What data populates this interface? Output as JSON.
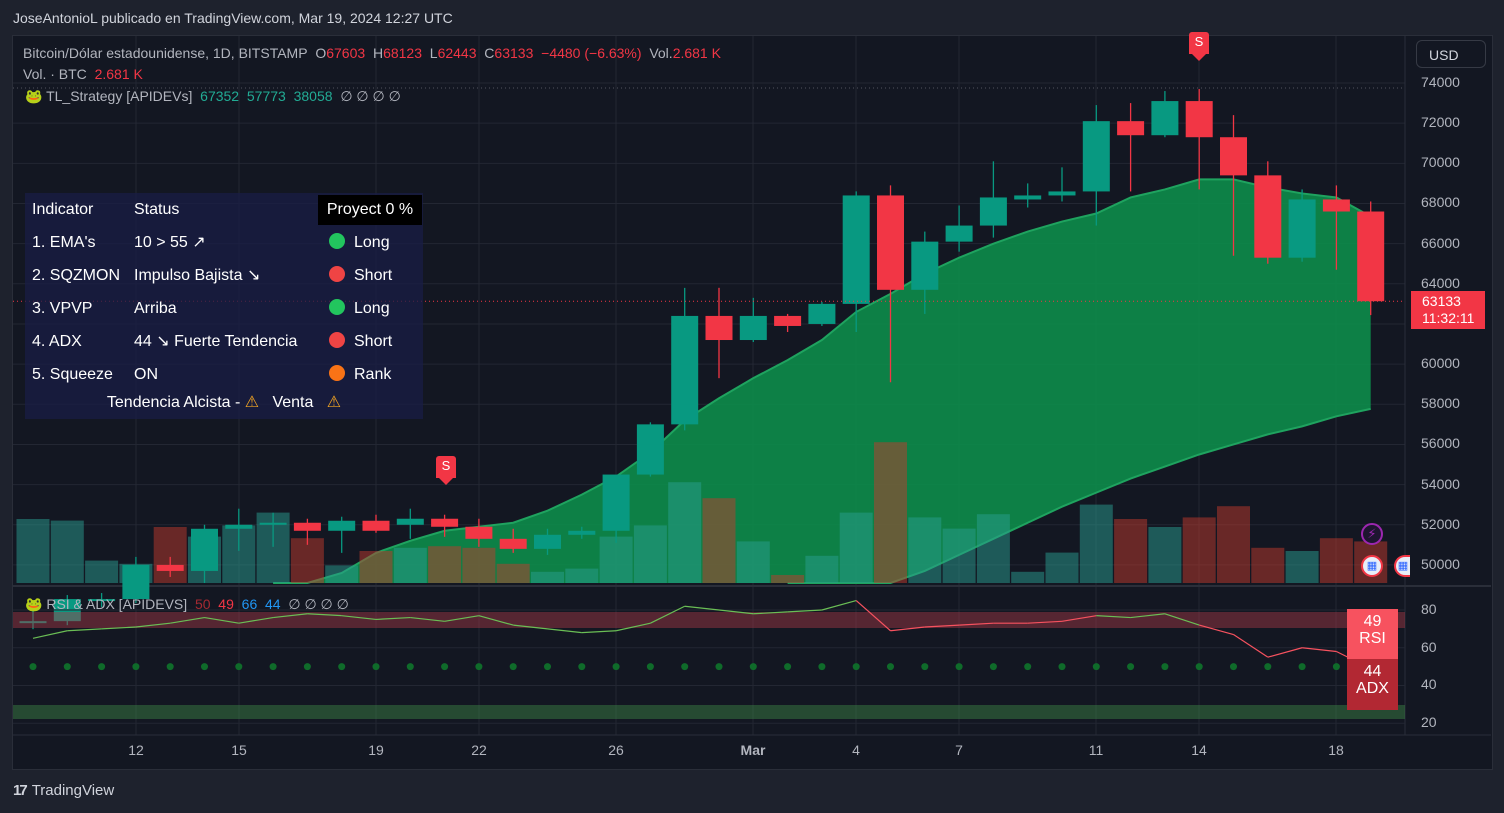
{
  "header": {
    "attribution": "JoseAntonioL publicado en TradingView.com, Mar 19, 2024 12:27 UTC"
  },
  "symbol": {
    "title": "Bitcoin/Dólar estadounidense, 1D, BITSTAMP",
    "o_label": "O",
    "o": "67603",
    "h_label": "H",
    "h": "68123",
    "l_label": "L",
    "l": "62443",
    "c_label": "C",
    "c": "63133",
    "change": "−4480 (−6.63%)",
    "vol_label": "Vol.",
    "vol": "2.681 K"
  },
  "volume_legend": {
    "label": "Vol. · BTC",
    "value": "2.681 K"
  },
  "strategy_legend": {
    "name": "TL_Strategy [APIDEVs]",
    "v1": "67352",
    "v2": "57773",
    "v3": "38058",
    "nulls": "∅ ∅ ∅ ∅"
  },
  "indicator_table": {
    "header": {
      "indicator": "Indicator",
      "status": "Status",
      "projection": "Proyect 0 %"
    },
    "rows": [
      {
        "indicator": "1. EMA's",
        "status": "10 > 55 ↗",
        "signal": "Long",
        "color": "#22c55e"
      },
      {
        "indicator": "2. SQZMON",
        "status": "Impulso Bajista ↘",
        "signal": "Short",
        "color": "#ef4444"
      },
      {
        "indicator": "3. VPVP",
        "status": "Arriba",
        "signal": "Long",
        "color": "#22c55e"
      },
      {
        "indicator": "4. ADX",
        "status": "44 ↘ Fuerte Tendencia",
        "signal": "Short",
        "color": "#ef4444"
      },
      {
        "indicator": "5. Squeeze",
        "status": "ON",
        "signal": "Rank",
        "color": "#f97316"
      }
    ],
    "footer": {
      "trend": "Tendencia Alcista -",
      "action": "Venta",
      "warn_icon": "⚠"
    }
  },
  "price_axis": {
    "currency": "USD",
    "ticks": [
      "74000",
      "72000",
      "70000",
      "68000",
      "66000",
      "64000",
      "60000",
      "58000",
      "56000",
      "54000",
      "52000",
      "50000"
    ],
    "last_price": "63133",
    "countdown": "11:32:11"
  },
  "rsi_legend": {
    "name": "RSI & ADX [APIDEVS]",
    "v1": "50",
    "v2": "49",
    "v3": "66",
    "v4": "44",
    "nulls": "∅ ∅ ∅ ∅"
  },
  "rsi_axis": {
    "ticks": [
      "80",
      "60",
      "40",
      "20"
    ],
    "rsi_value": "49",
    "rsi_label": "RSI",
    "adx_value": "44",
    "adx_label": "ADX"
  },
  "time_axis": {
    "labels": [
      "12",
      "15",
      "19",
      "22",
      "26",
      "Mar",
      "4",
      "7",
      "11",
      "14",
      "18"
    ]
  },
  "markers": {
    "sell_label": "S"
  },
  "footer": {
    "brand": "TradingView",
    "brand_logo": "17"
  },
  "colors": {
    "up": "#089981",
    "down": "#f23645",
    "ema_fill": "#0d8a4a",
    "rsi_up": "#6abe55",
    "rsi_down": "#f7525f"
  },
  "chart_data": {
    "type": "candlestick",
    "title": "Bitcoin/Dólar estadounidense, 1D, BITSTAMP",
    "ylabel": "USD",
    "ylim": [
      49500,
      75000
    ],
    "x": [
      "Feb 9",
      "Feb 10",
      "Feb 11",
      "Feb 12",
      "Feb 13",
      "Feb 14",
      "Feb 15",
      "Feb 16",
      "Feb 17",
      "Feb 18",
      "Feb 19",
      "Feb 20",
      "Feb 21",
      "Feb 22",
      "Feb 23",
      "Feb 24",
      "Feb 25",
      "Feb 26",
      "Feb 27",
      "Feb 28",
      "Feb 29",
      "Mar 1",
      "Mar 2",
      "Mar 3",
      "Mar 4",
      "Mar 5",
      "Mar 6",
      "Mar 7",
      "Mar 8",
      "Mar 9",
      "Mar 10",
      "Mar 11",
      "Mar 12",
      "Mar 13",
      "Mar 14",
      "Mar 15",
      "Mar 16",
      "Mar 17",
      "Mar 18",
      "Mar 19"
    ],
    "open": [
      47100,
      47200,
      48300,
      48300,
      50000,
      49700,
      51800,
      52000,
      52100,
      51700,
      52200,
      52000,
      52300,
      51900,
      51300,
      50800,
      51500,
      51700,
      54500,
      57000,
      62400,
      61200,
      62400,
      62000,
      63000,
      68400,
      63700,
      66100,
      66900,
      68200,
      68400,
      68600,
      72100,
      71400,
      73100,
      71300,
      69400,
      65300,
      68200,
      67600
    ],
    "high": [
      48000,
      48500,
      48600,
      50400,
      50400,
      52000,
      52800,
      52600,
      52300,
      52400,
      52500,
      52800,
      52500,
      52300,
      51800,
      51800,
      51900,
      52000,
      57100,
      63800,
      63800,
      63300,
      62500,
      63100,
      68600,
      68900,
      66600,
      67900,
      70100,
      69000,
      69800,
      72900,
      73000,
      73600,
      73700,
      72400,
      70100,
      68700,
      68900,
      68100
    ],
    "low": [
      46800,
      47000,
      47900,
      48100,
      49400,
      49100,
      50700,
      50900,
      51000,
      50600,
      51600,
      51300,
      51400,
      50900,
      50600,
      50500,
      51300,
      51100,
      54400,
      56700,
      59300,
      61100,
      61600,
      61900,
      61600,
      59100,
      62500,
      65600,
      66300,
      67800,
      68100,
      66900,
      68600,
      71300,
      68700,
      65400,
      65000,
      65100,
      64700,
      62443
    ],
    "close": [
      47200,
      48300,
      48300,
      50000,
      49700,
      51800,
      52000,
      52100,
      51700,
      52200,
      51700,
      52300,
      51900,
      51300,
      50800,
      51500,
      51700,
      54500,
      57000,
      62400,
      61200,
      62400,
      61900,
      63000,
      68400,
      63700,
      66100,
      66900,
      68300,
      68400,
      68600,
      72100,
      71400,
      73100,
      71300,
      69400,
      65300,
      68200,
      67600,
      63133
    ],
    "volume_relative": [
      0.4,
      0.39,
      0.14,
      0.12,
      0.35,
      0.29,
      0.36,
      0.44,
      0.28,
      0.11,
      0.2,
      0.22,
      0.23,
      0.22,
      0.12,
      0.07,
      0.09,
      0.29,
      0.36,
      0.63,
      0.53,
      0.26,
      0.05,
      0.17,
      0.44,
      0.88,
      0.41,
      0.34,
      0.43,
      0.07,
      0.19,
      0.49,
      0.4,
      0.35,
      0.41,
      0.48,
      0.22,
      0.2,
      0.28,
      0.26
    ],
    "ema_fast": [
      null,
      null,
      null,
      null,
      null,
      null,
      null,
      47300,
      48500,
      49600,
      50600,
      51200,
      51700,
      51900,
      52100,
      52700,
      53500,
      54400,
      55600,
      57200,
      58300,
      59300,
      60200,
      61200,
      62600,
      63500,
      64500,
      65300,
      66000,
      66600,
      67100,
      67500,
      68300,
      68700,
      69200,
      69200,
      68800,
      68500,
      68300,
      67352
    ],
    "ema_slow": [
      null,
      null,
      null,
      null,
      null,
      null,
      null,
      null,
      null,
      null,
      null,
      null,
      null,
      null,
      null,
      null,
      null,
      null,
      null,
      null,
      null,
      null,
      46300,
      47100,
      48000,
      48900,
      49700,
      50500,
      51300,
      52100,
      52900,
      53600,
      54300,
      54900,
      55500,
      56000,
      56500,
      56900,
      57400,
      57773
    ],
    "rsi": [
      65,
      69,
      70,
      71,
      73,
      76,
      73,
      76,
      78,
      77,
      75,
      76,
      74,
      77,
      72,
      70,
      68,
      69,
      73,
      82,
      80,
      78,
      79,
      80,
      85,
      69,
      71,
      72,
      73,
      73,
      74,
      77,
      76,
      78,
      72,
      67,
      55,
      60,
      58,
      49
    ],
    "adx_dots_level": 50,
    "sell_signals": [
      "Feb 21",
      "Mar 14"
    ],
    "events": [
      "Mar 19"
    ]
  }
}
